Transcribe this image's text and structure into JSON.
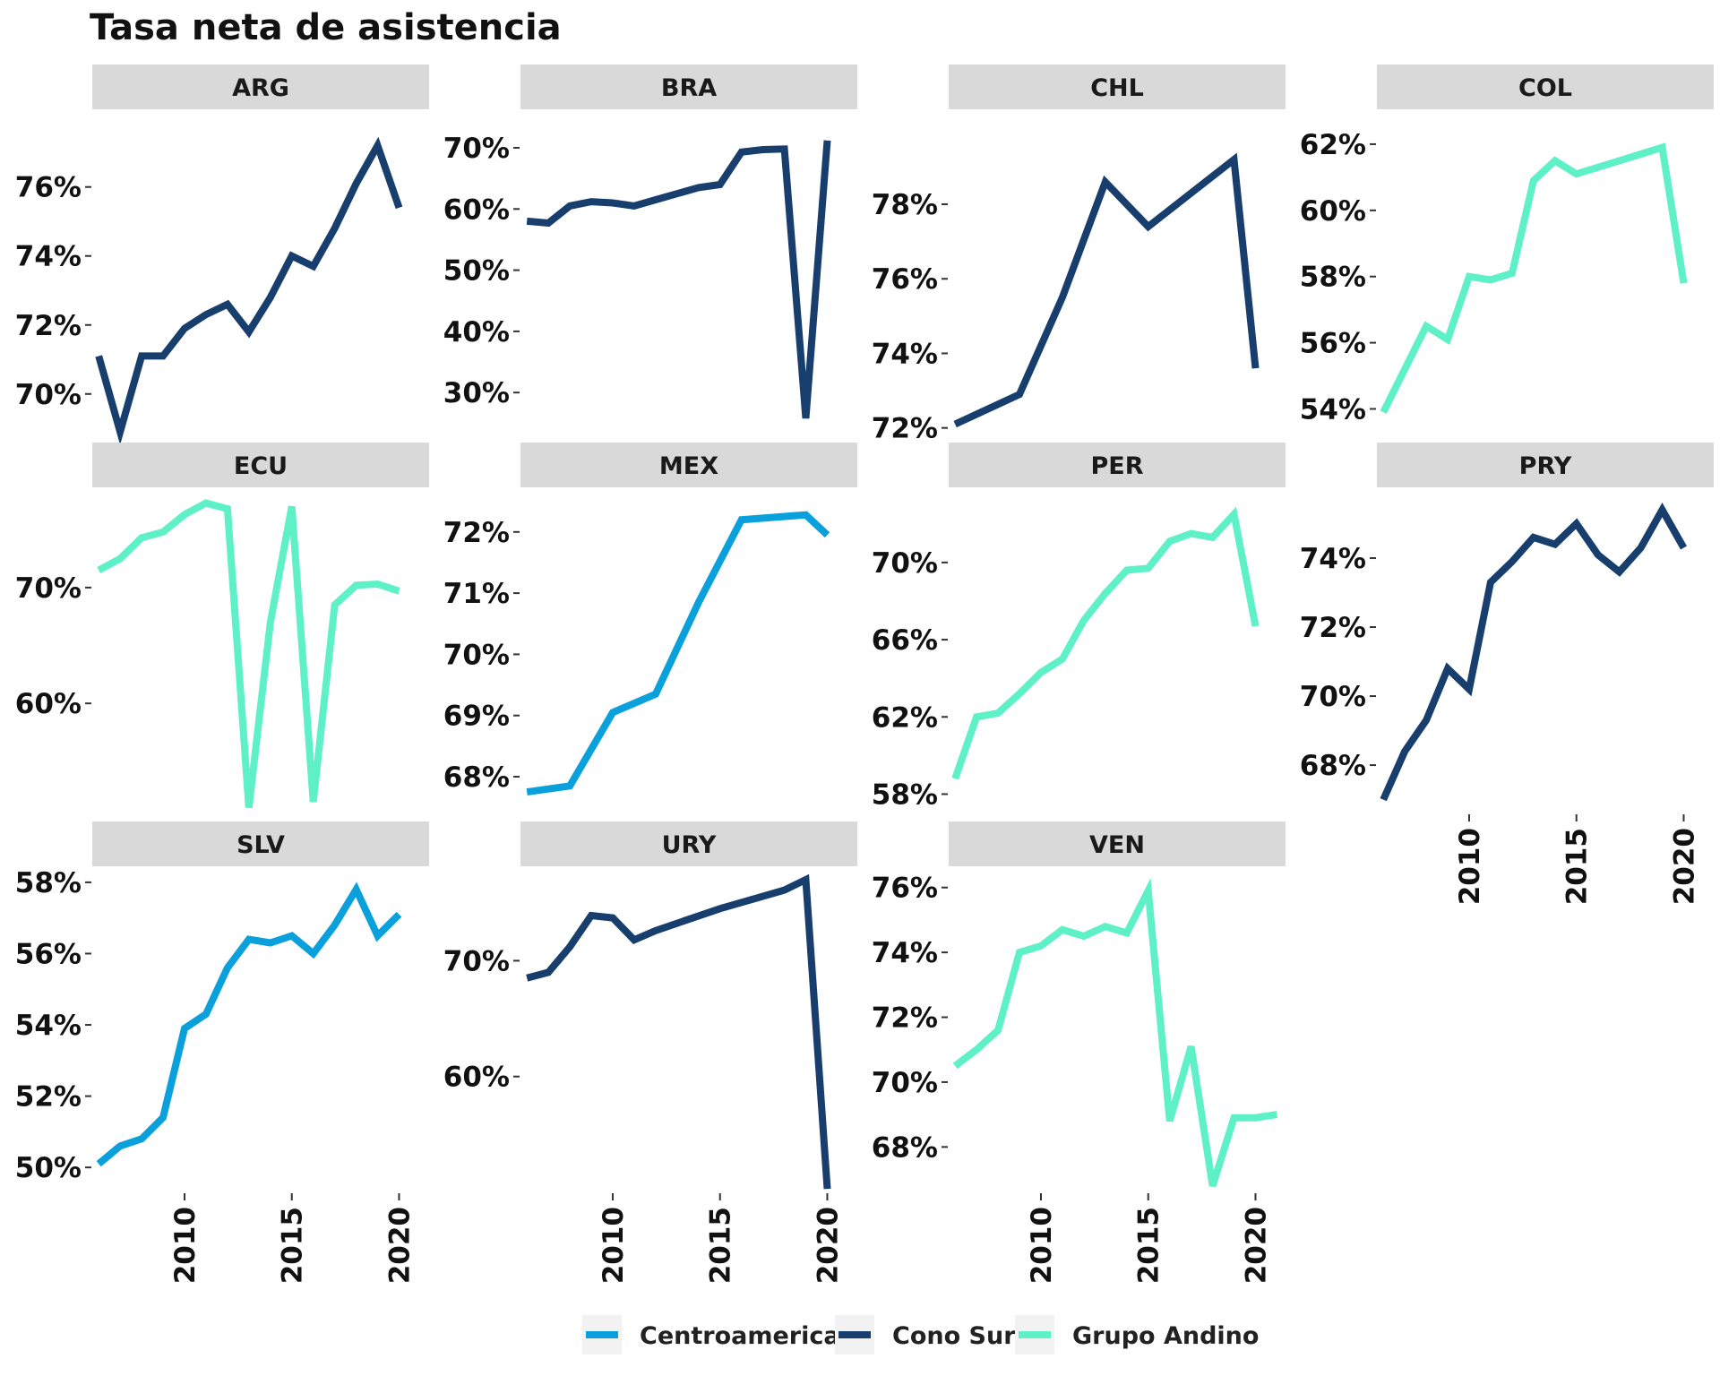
{
  "chart_data": {
    "type": "line",
    "title": "Tasa neta de asistencia",
    "xlabel": "",
    "ylabel": "",
    "x_ticks": [
      "2010",
      "2015",
      "2020"
    ],
    "colors": {
      "Centroamerica": "#0aa0dc",
      "Cono Sur": "#173e6c",
      "Grupo Andino": "#5ef0c6"
    },
    "legend": {
      "position": "bottom",
      "entries": [
        "Centroamerica",
        "Cono Sur",
        "Grupo Andino"
      ]
    },
    "panels": [
      {
        "name": "ARG",
        "group": "Cono Sur",
        "ylim": [
          68.8,
          78.2
        ],
        "y_ticks": [
          70,
          72,
          74,
          76
        ],
        "y_tick_labels": [
          "70%",
          "72%",
          "74%",
          "76%"
        ],
        "x": [
          2006,
          2007,
          2008,
          2009,
          2010,
          2011,
          2012,
          2013,
          2014,
          2015,
          2016,
          2017,
          2018,
          2019,
          2020
        ],
        "y": [
          71.1,
          68.9,
          71.1,
          71.1,
          71.9,
          72.3,
          72.6,
          71.8,
          72.8,
          74.0,
          73.7,
          74.8,
          76.1,
          77.2,
          75.4
        ]
      },
      {
        "name": "BRA",
        "group": "Cono Sur",
        "ylim": [
          23,
          76
        ],
        "y_ticks": [
          30,
          40,
          50,
          60,
          70
        ],
        "y_tick_labels": [
          "30%",
          "40%",
          "50%",
          "60%",
          "70%"
        ],
        "x": [
          2006,
          2007,
          2008,
          2009,
          2010,
          2011,
          2012,
          2013,
          2014,
          2015,
          2016,
          2017,
          2018,
          2019,
          2020
        ],
        "y": [
          58,
          57.7,
          60.5,
          61.2,
          61,
          60.5,
          61.5,
          62.5,
          63.5,
          64,
          69.3,
          69.7,
          69.8,
          25.8,
          71.2
        ]
      },
      {
        "name": "CHL",
        "group": "Cono Sur",
        "ylim": [
          71.8,
          80.5
        ],
        "y_ticks": [
          72,
          74,
          76,
          78
        ],
        "y_tick_labels": [
          "72%",
          "74%",
          "76%",
          "78%"
        ],
        "x": [
          2006,
          2009,
          2011,
          2013,
          2015,
          2017,
          2019,
          2020
        ],
        "y": [
          72.1,
          72.9,
          75.5,
          78.6,
          77.4,
          78.3,
          79.2,
          73.6
        ]
      },
      {
        "name": "COL",
        "group": "Grupo Andino",
        "ylim": [
          53.2,
          63.0
        ],
        "y_ticks": [
          54,
          56,
          58,
          60,
          62
        ],
        "y_tick_labels": [
          "54%",
          "56%",
          "58%",
          "60%",
          "62%"
        ],
        "x": [
          2006,
          2007,
          2008,
          2009,
          2010,
          2011,
          2012,
          2013,
          2014,
          2015,
          2016,
          2017,
          2018,
          2019,
          2020
        ],
        "y": [
          53.9,
          55.2,
          56.5,
          56.1,
          58,
          57.9,
          58.1,
          60.9,
          61.5,
          61.1,
          61.3,
          61.5,
          61.7,
          61.9,
          57.8
        ]
      },
      {
        "name": "ECU",
        "group": "Grupo Andino",
        "ylim": [
          50.5,
          78.5
        ],
        "y_ticks": [
          60,
          70
        ],
        "y_tick_labels": [
          "60%",
          "70%"
        ],
        "x": [
          2006,
          2007,
          2008,
          2009,
          2010,
          2011,
          2012,
          2013,
          2014,
          2015,
          2016,
          2017,
          2018,
          2019,
          2020
        ],
        "y": [
          71.5,
          72.5,
          74.3,
          74.8,
          76.3,
          77.3,
          76.8,
          51,
          67,
          77,
          51.5,
          68.5,
          70.2,
          70.3,
          69.7
        ]
      },
      {
        "name": "MEX",
        "group": "Centroamerica",
        "ylim": [
          67.4,
          72.7
        ],
        "y_ticks": [
          68,
          69,
          70,
          71,
          72
        ],
        "y_tick_labels": [
          "68%",
          "69%",
          "70%",
          "71%",
          "72%"
        ],
        "x": [
          2006,
          2008,
          2010,
          2012,
          2014,
          2016,
          2019,
          2020
        ],
        "y": [
          67.75,
          67.85,
          69.05,
          69.35,
          70.85,
          72.2,
          72.28,
          71.95
        ]
      },
      {
        "name": "PER",
        "group": "Grupo Andino",
        "ylim": [
          57.0,
          73.8
        ],
        "y_ticks": [
          58,
          62,
          66,
          70
        ],
        "y_tick_labels": [
          "58%",
          "62%",
          "66%",
          "70%"
        ],
        "x": [
          2006,
          2007,
          2008,
          2009,
          2010,
          2011,
          2012,
          2013,
          2014,
          2015,
          2016,
          2017,
          2018,
          2019,
          2020
        ],
        "y": [
          58.8,
          62,
          62.2,
          63.2,
          64.3,
          65,
          67,
          68.4,
          69.6,
          69.7,
          71.1,
          71.5,
          71.3,
          72.5,
          66.7
        ]
      },
      {
        "name": "PRY",
        "group": "Cono Sur",
        "ylim": [
          66.6,
          76.0
        ],
        "y_ticks": [
          68,
          70,
          72,
          74
        ],
        "y_tick_labels": [
          "68%",
          "70%",
          "72%",
          "74%"
        ],
        "x": [
          2006,
          2007,
          2008,
          2009,
          2010,
          2011,
          2012,
          2013,
          2014,
          2015,
          2016,
          2017,
          2018,
          2019,
          2020
        ],
        "y": [
          67,
          68.4,
          69.3,
          70.8,
          70.2,
          73.3,
          73.9,
          74.6,
          74.4,
          75,
          74.1,
          73.6,
          74.3,
          75.4,
          74.3
        ]
      },
      {
        "name": "SLV",
        "group": "Centroamerica",
        "ylim": [
          49.3,
          58.4
        ],
        "y_ticks": [
          50,
          52,
          54,
          56,
          58
        ],
        "y_tick_labels": [
          "50%",
          "52%",
          "54%",
          "56%",
          "58%"
        ],
        "x": [
          2006,
          2007,
          2008,
          2009,
          2010,
          2011,
          2012,
          2013,
          2014,
          2015,
          2016,
          2017,
          2018,
          2019,
          2020
        ],
        "y": [
          50.1,
          50.6,
          50.8,
          51.4,
          53.9,
          54.3,
          55.6,
          56.4,
          56.3,
          56.5,
          56,
          56.8,
          57.8,
          56.5,
          57.1
        ]
      },
      {
        "name": "URY",
        "group": "Cono Sur",
        "ylim": [
          50.0,
          78.0
        ],
        "y_ticks": [
          60,
          70
        ],
        "y_tick_labels": [
          "60%",
          "70%"
        ],
        "x": [
          2006,
          2007,
          2008,
          2009,
          2010,
          2011,
          2012,
          2015,
          2018,
          2019,
          2020
        ],
        "y": [
          68.5,
          69,
          71.2,
          73.9,
          73.7,
          71.8,
          72.6,
          74.5,
          76.1,
          77,
          50.3
        ]
      },
      {
        "name": "VEN",
        "group": "Grupo Andino",
        "ylim": [
          66.6,
          76.6
        ],
        "y_ticks": [
          68,
          70,
          72,
          74,
          76
        ],
        "y_tick_labels": [
          "68%",
          "70%",
          "72%",
          "74%",
          "76%"
        ],
        "x": [
          2006,
          2007,
          2008,
          2009,
          2010,
          2011,
          2012,
          2013,
          2014,
          2015,
          2016,
          2017,
          2018,
          2019,
          2020,
          2021
        ],
        "y": [
          70.5,
          71,
          71.6,
          74,
          74.2,
          74.7,
          74.5,
          74.8,
          74.6,
          75.9,
          68.8,
          71.1,
          66.8,
          68.9,
          68.9,
          69
        ]
      }
    ]
  }
}
